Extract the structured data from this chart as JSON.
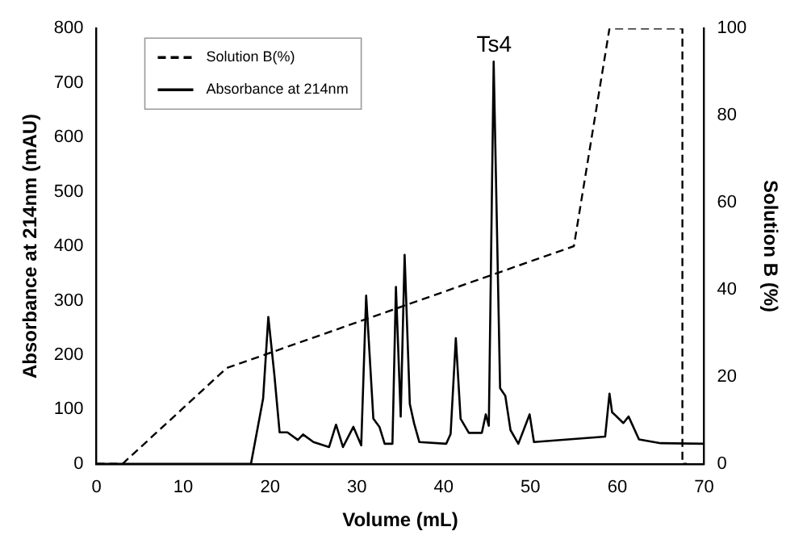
{
  "chart_data": {
    "type": "line",
    "xlabel": "Volume (mL)",
    "ylabel": "Absorbance at 214nm (mAU)",
    "y2label": "Solution B (%)",
    "xlim": [
      0,
      70
    ],
    "xticks": [
      0,
      10,
      20,
      30,
      40,
      50,
      60,
      70
    ],
    "ylim": [
      0,
      800
    ],
    "yticks": [
      0,
      100,
      200,
      300,
      400,
      500,
      600,
      700,
      800
    ],
    "y2lim": [
      0,
      100
    ],
    "y2ticks": [
      0,
      20,
      40,
      60,
      80,
      100
    ],
    "grid": false,
    "legend": "top left",
    "marker": "none",
    "annotations": [
      {
        "text": "Ts4",
        "x": 45.8,
        "y": 739
      }
    ],
    "series": [
      {
        "name": "Solution B(%)",
        "color": "#000000",
        "axis": "y2",
        "line_style": "dashed",
        "x": [
          0,
          3,
          15,
          55,
          59.1,
          67.5,
          67.5,
          68
        ],
        "values": [
          0,
          0,
          22,
          50,
          100,
          100,
          0,
          0
        ]
      },
      {
        "name": "Absorbance at 214nm",
        "color": "#000000",
        "axis": "y",
        "line_style": "solid",
        "x": [
          0,
          17.8,
          19.2,
          19.8,
          20.5,
          21.1,
          22,
          23.2,
          23.8,
          25,
          26.8,
          27.6,
          28.4,
          29.6,
          30.5,
          31.07,
          31.9,
          32.6,
          33.2,
          34.1,
          34.5,
          35.05,
          35.5,
          36.1,
          36.6,
          37.2,
          40.3,
          40.8,
          41.4,
          41.95,
          42.9,
          44.4,
          44.85,
          45.2,
          45.76,
          46.5,
          47.1,
          47.7,
          48.6,
          49.9,
          50.4,
          58.6,
          59.1,
          59.4,
          60.7,
          61.3,
          62.5,
          65,
          70
        ],
        "values": [
          0,
          0,
          120,
          270,
          163,
          58,
          58,
          44,
          54,
          40,
          31,
          72,
          31,
          68,
          34,
          309,
          83,
          68,
          37,
          37,
          325,
          87,
          384,
          110,
          74,
          40,
          37,
          55,
          231,
          83,
          57,
          57,
          91,
          70,
          739,
          139,
          125,
          62,
          37,
          91,
          40,
          50,
          129,
          95,
          75,
          87,
          45,
          38,
          37
        ]
      }
    ]
  }
}
